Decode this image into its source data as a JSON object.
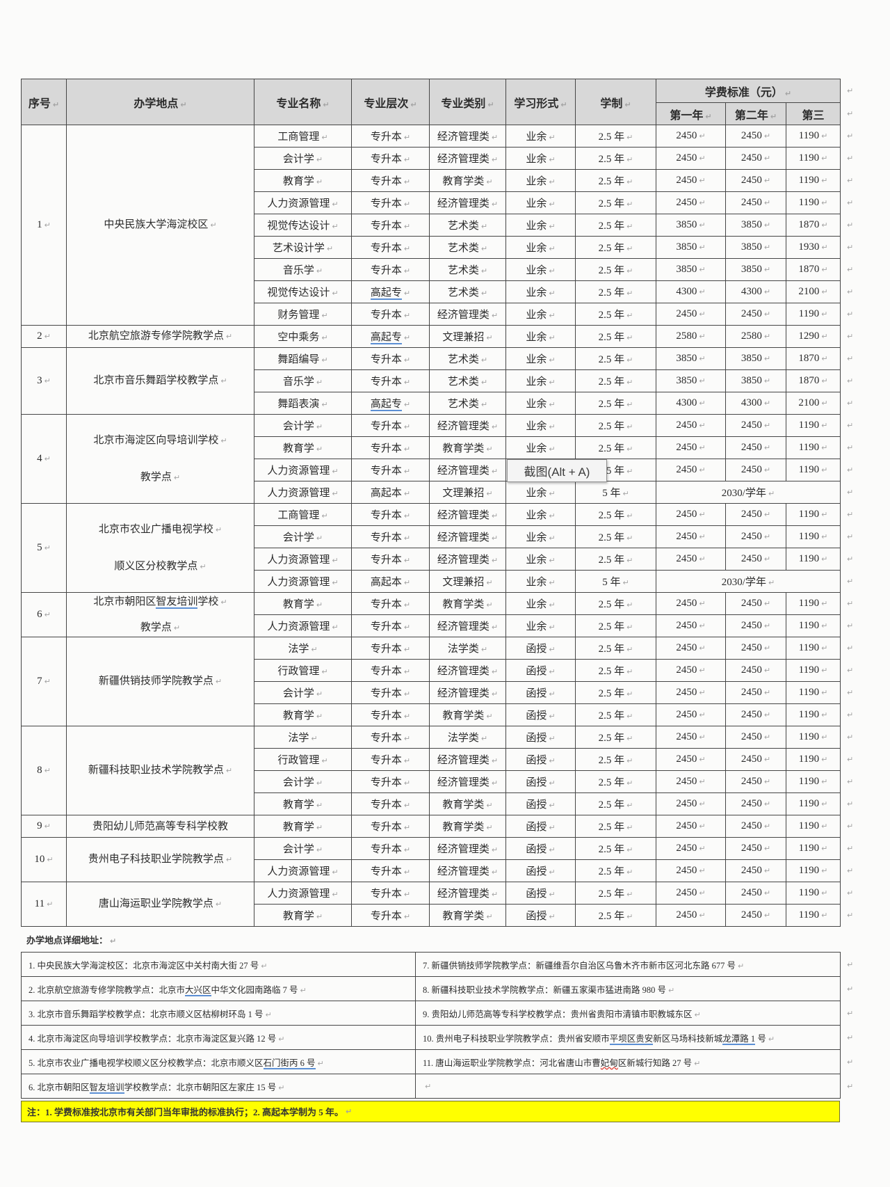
{
  "marks": {
    "cell_end": "↵"
  },
  "colors": {
    "header_bg": "#d8d8d8",
    "table_border": "#454545",
    "underline_blue": "#5b8fd4",
    "spellcheck_red": "#e03c31",
    "note_highlight": "#ffff00"
  },
  "table": {
    "columns": [
      "序号",
      "办学地点",
      "专业名称",
      "专业层次",
      "专业类别",
      "学习形式",
      "学制"
    ],
    "fee_group": "学费标准（元）",
    "fee_columns": [
      "第一年",
      "第二年",
      "第三"
    ],
    "sections": [
      {
        "no": "1",
        "loc": [
          [
            "中央民族大学海淀校区"
          ]
        ],
        "rows": [
          {
            "c": [
              "工商管理",
              "专升本",
              "经济管理类",
              "业余",
              "2.5 年"
            ],
            "f": [
              "2450",
              "2450",
              "1190"
            ]
          },
          {
            "c": [
              "会计学",
              "专升本",
              "经济管理类",
              "业余",
              "2.5 年"
            ],
            "f": [
              "2450",
              "2450",
              "1190"
            ]
          },
          {
            "c": [
              "教育学",
              "专升本",
              "教育学类",
              "业余",
              "2.5 年"
            ],
            "f": [
              "2450",
              "2450",
              "1190"
            ]
          },
          {
            "c": [
              "人力资源管理",
              "专升本",
              "经济管理类",
              "业余",
              "2.5 年"
            ],
            "f": [
              "2450",
              "2450",
              "1190"
            ]
          },
          {
            "c": [
              "视觉传达设计",
              "专升本",
              "艺术类",
              "业余",
              "2.5 年"
            ],
            "f": [
              "3850",
              "3850",
              "1870"
            ]
          },
          {
            "c": [
              "艺术设计学",
              "专升本",
              "艺术类",
              "业余",
              "2.5 年"
            ],
            "f": [
              "3850",
              "3850",
              "1930"
            ]
          },
          {
            "c": [
              "音乐学",
              "专升本",
              "艺术类",
              "业余",
              "2.5 年"
            ],
            "f": [
              "3850",
              "3850",
              "1870"
            ]
          },
          {
            "c": [
              "视觉传达设计",
              {
                "t": "高起专",
                "u": true
              },
              "艺术类",
              "业余",
              "2.5 年"
            ],
            "f": [
              "4300",
              "4300",
              "2100"
            ]
          },
          {
            "c": [
              "财务管理",
              "专升本",
              "经济管理类",
              "业余",
              "2.5 年"
            ],
            "f": [
              "2450",
              "2450",
              "1190"
            ]
          }
        ]
      },
      {
        "no": "2",
        "loc": [
          [
            "北京航空旅游专修学院教学点"
          ]
        ],
        "rows": [
          {
            "c": [
              "空中乘务",
              {
                "t": "高起专",
                "u": true
              },
              "文理兼招",
              "业余",
              "2.5 年"
            ],
            "f": [
              "2580",
              "2580",
              "1290"
            ]
          }
        ]
      },
      {
        "no": "3",
        "loc": [
          [
            "北京市音乐舞蹈学校教学点"
          ]
        ],
        "rows": [
          {
            "c": [
              "舞蹈编导",
              "专升本",
              "艺术类",
              "业余",
              "2.5 年"
            ],
            "f": [
              "3850",
              "3850",
              "1870"
            ]
          },
          {
            "c": [
              "音乐学",
              "专升本",
              "艺术类",
              "业余",
              "2.5 年"
            ],
            "f": [
              "3850",
              "3850",
              "1870"
            ]
          },
          {
            "c": [
              "舞蹈表演",
              {
                "t": "高起专",
                "u": true
              },
              "艺术类",
              "业余",
              "2.5 年"
            ],
            "f": [
              "4300",
              "4300",
              "2100"
            ]
          }
        ]
      },
      {
        "no": "4",
        "loc": [
          [
            "北京市海淀区向导培训学校"
          ],
          [
            "教学点"
          ]
        ],
        "rows": [
          {
            "c": [
              "会计学",
              "专升本",
              "经济管理类",
              "业余",
              "2.5 年"
            ],
            "f": [
              "2450",
              "2450",
              "1190"
            ]
          },
          {
            "c": [
              "教育学",
              "专升本",
              "教育学类",
              "业余",
              "2.5 年"
            ],
            "f": [
              "2450",
              "2450",
              "1190"
            ]
          },
          {
            "c": [
              "人力资源管理",
              "专升本",
              "经济管理类",
              "业余",
              "2.5 年"
            ],
            "f": [
              "2450",
              "2450",
              "1190"
            ]
          },
          {
            "c": [
              "人力资源管理",
              "高起本",
              "文理兼招",
              "业余",
              "5 年"
            ],
            "f": "2030/学年"
          }
        ]
      },
      {
        "no": "5",
        "loc": [
          [
            "北京市农业广播电视学校"
          ],
          [
            "顺义区分校教学点"
          ]
        ],
        "rows": [
          {
            "c": [
              "工商管理",
              "专升本",
              "经济管理类",
              "业余",
              "2.5 年"
            ],
            "f": [
              "2450",
              "2450",
              "1190"
            ]
          },
          {
            "c": [
              "会计学",
              "专升本",
              "经济管理类",
              "业余",
              "2.5 年"
            ],
            "f": [
              "2450",
              "2450",
              "1190"
            ]
          },
          {
            "c": [
              "人力资源管理",
              "专升本",
              "经济管理类",
              "业余",
              "2.5 年"
            ],
            "f": [
              "2450",
              "2450",
              "1190"
            ]
          },
          {
            "c": [
              "人力资源管理",
              "高起本",
              "文理兼招",
              "业余",
              "5 年"
            ],
            "f": "2030/学年"
          }
        ]
      },
      {
        "no": "6",
        "loc": [
          [
            "北京市朝阳区",
            {
              "t": "智友培训",
              "u": true
            },
            "学校"
          ],
          [
            "教学点"
          ]
        ],
        "rows": [
          {
            "c": [
              "教育学",
              "专升本",
              "教育学类",
              "业余",
              "2.5 年"
            ],
            "f": [
              "2450",
              "2450",
              "1190"
            ]
          },
          {
            "c": [
              "人力资源管理",
              "专升本",
              "经济管理类",
              "业余",
              "2.5 年"
            ],
            "f": [
              "2450",
              "2450",
              "1190"
            ]
          }
        ]
      },
      {
        "no": "7",
        "loc": [
          [
            "新疆供销技师学院教学点"
          ]
        ],
        "rows": [
          {
            "c": [
              "法学",
              "专升本",
              "法学类",
              "函授",
              "2.5 年"
            ],
            "f": [
              "2450",
              "2450",
              "1190"
            ]
          },
          {
            "c": [
              "行政管理",
              "专升本",
              "经济管理类",
              "函授",
              "2.5 年"
            ],
            "f": [
              "2450",
              "2450",
              "1190"
            ]
          },
          {
            "c": [
              "会计学",
              "专升本",
              "经济管理类",
              "函授",
              "2.5 年"
            ],
            "f": [
              "2450",
              "2450",
              "1190"
            ]
          },
          {
            "c": [
              "教育学",
              "专升本",
              "教育学类",
              "函授",
              "2.5 年"
            ],
            "f": [
              "2450",
              "2450",
              "1190"
            ]
          }
        ]
      },
      {
        "no": "8",
        "loc": [
          [
            "新疆科技职业技术学院教学点"
          ]
        ],
        "rows": [
          {
            "c": [
              "法学",
              "专升本",
              "法学类",
              "函授",
              "2.5 年"
            ],
            "f": [
              "2450",
              "2450",
              "1190"
            ]
          },
          {
            "c": [
              "行政管理",
              "专升本",
              "经济管理类",
              "函授",
              "2.5 年"
            ],
            "f": [
              "2450",
              "2450",
              "1190"
            ]
          },
          {
            "c": [
              "会计学",
              "专升本",
              "经济管理类",
              "函授",
              "2.5 年"
            ],
            "f": [
              "2450",
              "2450",
              "1190"
            ]
          },
          {
            "c": [
              "教育学",
              "专升本",
              "教育学类",
              "函授",
              "2.5 年"
            ],
            "f": [
              "2450",
              "2450",
              "1190"
            ]
          }
        ]
      },
      {
        "no": "9",
        "loc": [
          [
            "贵阳幼儿师范高等专科学校教"
          ]
        ],
        "nomark": true,
        "rows": [
          {
            "c": [
              "教育学",
              "专升本",
              "教育学类",
              "函授",
              "2.5 年"
            ],
            "f": [
              "2450",
              "2450",
              "1190"
            ]
          }
        ]
      },
      {
        "no": "10",
        "loc": [
          [
            "贵州电子科技职业学院教学点"
          ]
        ],
        "rows": [
          {
            "c": [
              "会计学",
              "专升本",
              "经济管理类",
              "函授",
              "2.5 年"
            ],
            "f": [
              "2450",
              "2450",
              "1190"
            ]
          },
          {
            "c": [
              "人力资源管理",
              "专升本",
              "经济管理类",
              "函授",
              "2.5 年"
            ],
            "f": [
              "2450",
              "2450",
              "1190"
            ]
          }
        ]
      },
      {
        "no": "11",
        "loc": [
          [
            "唐山海运职业学院教学点"
          ]
        ],
        "rows": [
          {
            "c": [
              "人力资源管理",
              "专升本",
              "经济管理类",
              "函授",
              "2.5 年"
            ],
            "f": [
              "2450",
              "2450",
              "1190"
            ]
          },
          {
            "c": [
              "教育学",
              "专升本",
              "教育学类",
              "函授",
              "2.5 年"
            ],
            "f": [
              "2450",
              "2450",
              "1190"
            ]
          }
        ]
      }
    ]
  },
  "tooltip": {
    "text": "截图(Alt + A)"
  },
  "address_section": {
    "title": "办学地点详细地址：",
    "rows": [
      [
        "1. 中央民族大学海淀校区：北京市海淀区中关村南大街 27 号",
        "7. 新疆供销技师学院教学点：新疆维吾尔自治区乌鲁木齐市新市区河北东路 677 号"
      ],
      [
        [
          "2. 北京航空旅游专修学院教学点：北京市",
          {
            "t": "大兴区",
            "u": true
          },
          "中华文化园南路临 7 号"
        ],
        "8. 新疆科技职业技术学院教学点：新疆五家渠市猛进南路 980 号"
      ],
      [
        "3. 北京市音乐舞蹈学校教学点：北京市顺义区枯柳树环岛 1 号",
        "9. 贵阳幼儿师范高等专科学校教学点：贵州省贵阳市清镇市职教城东区"
      ],
      [
        "4. 北京市海淀区向导培训学校教学点：北京市海淀区复兴路 12 号",
        [
          "10. 贵州电子科技职业学院教学点：贵州省安顺市",
          {
            "t": "平坝区贵安",
            "u": true
          },
          "新区马场科技新城",
          {
            "t": "龙潭路 1",
            "u": true
          },
          " 号"
        ]
      ],
      [
        [
          "5. 北京市农业广播电视学校顺义区分校教学点：北京市顺义区",
          {
            "t": "石门街丙 6 号",
            "u": true
          }
        ],
        [
          "11. 唐山海运职业学院教学点：河北省唐山市曹",
          {
            "t": "妃甸",
            "w": true
          },
          "区新城行知路 27 号"
        ]
      ],
      [
        [
          "6. 北京市朝阳区",
          {
            "t": "智友培训",
            "u": true
          },
          "学校教学点：北京市朝阳区左家庄 15 号"
        ],
        ""
      ]
    ]
  },
  "note": {
    "text": "注：1. 学费标准按北京市有关部门当年审批的标准执行；2. 高起本学制为 5 年。"
  }
}
